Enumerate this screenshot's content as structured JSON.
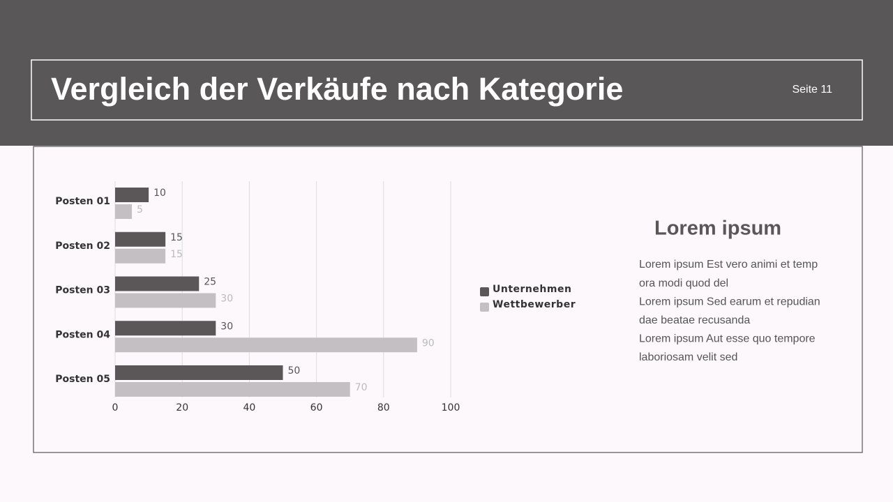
{
  "header": {
    "title": "Vergleich der Verkäufe nach Kategorie",
    "page_label": "Seite 11"
  },
  "chart_data": {
    "type": "bar",
    "orientation": "horizontal",
    "categories": [
      "Posten 01",
      "Posten 02",
      "Posten 03",
      "Posten 04",
      "Posten 05"
    ],
    "series": [
      {
        "name": "Unternehmen",
        "color": "#5b5658",
        "label_color": "#555555",
        "values": [
          10,
          15,
          25,
          30,
          50
        ]
      },
      {
        "name": "Wettbewerber",
        "color": "#c4bfc3",
        "label_color": "#bbbbbb",
        "values": [
          5,
          15,
          30,
          90,
          70
        ]
      }
    ],
    "xlim": [
      0,
      100
    ],
    "xticks": [
      0,
      20,
      40,
      60,
      80,
      100
    ],
    "grid": true,
    "legend": "right"
  },
  "side_text": {
    "heading": "Lorem ipsum",
    "lines": [
      "Lorem ipsum Est vero animi et temp",
      "ora modi quod del",
      "Lorem ipsum Sed earum et repudian",
      "dae beatae recusanda",
      "Lorem ipsum Aut esse quo tempore",
      "laboriosam velit sed"
    ]
  }
}
